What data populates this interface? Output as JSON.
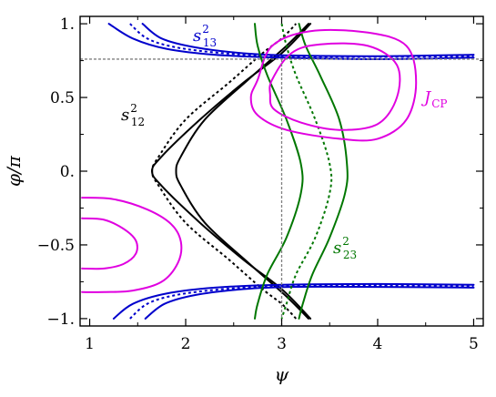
{
  "chart_data": {
    "type": "line",
    "xlabel": "ψ",
    "ylabel": "φ/π",
    "xlim": [
      0.9,
      5.1
    ],
    "ylim": [
      -1.05,
      1.05
    ],
    "x_ticks": [
      "1",
      "2",
      "3",
      "4",
      "5"
    ],
    "y_ticks": [
      "−1.",
      "−0.5",
      "0.",
      "0.5",
      "1."
    ],
    "grid": false,
    "reference_lines": {
      "horizontal_y": 0.76,
      "vertical_x": 3.0,
      "color": "#7f7f7f",
      "style": "dashed"
    },
    "annotations": [
      {
        "id": "s13",
        "base": "s",
        "sup": "2",
        "sub": "13",
        "color": "#0000cc"
      },
      {
        "id": "s12",
        "base": "s",
        "sup": "2",
        "sub": "12",
        "color": "#000000"
      },
      {
        "id": "s23",
        "base": "s",
        "sup": "2",
        "sub": "23",
        "color": "#007700"
      },
      {
        "id": "jcp",
        "base": "J",
        "sub": "CP",
        "color": "#e000e0"
      }
    ],
    "series": [
      {
        "id": "s12-left",
        "color": "#000000",
        "style": "solid",
        "points": [
          [
            3.3,
            -1.0
          ],
          [
            3.0,
            -0.8
          ],
          [
            2.6,
            -0.6
          ],
          [
            2.15,
            -0.35
          ],
          [
            1.75,
            -0.1
          ],
          [
            1.65,
            0.0
          ],
          [
            1.75,
            0.1
          ],
          [
            2.15,
            0.35
          ],
          [
            2.6,
            0.6
          ],
          [
            3.0,
            0.8
          ],
          [
            3.3,
            1.0
          ]
        ]
      },
      {
        "id": "s12-mid",
        "color": "#000000",
        "style": "dotted",
        "points": [
          [
            3.15,
            -1.0
          ],
          [
            3.0,
            -0.9
          ],
          [
            2.8,
            -0.8
          ],
          [
            2.45,
            -0.6
          ],
          [
            2.0,
            -0.35
          ],
          [
            1.72,
            -0.1
          ],
          [
            1.65,
            0.0
          ],
          [
            1.72,
            0.1
          ],
          [
            2.0,
            0.35
          ],
          [
            2.45,
            0.6
          ],
          [
            2.8,
            0.8
          ],
          [
            3.0,
            0.9
          ],
          [
            3.15,
            1.0
          ]
        ]
      },
      {
        "id": "s12-right",
        "color": "#000000",
        "style": "solid",
        "points": [
          [
            3.28,
            -1.0
          ],
          [
            3.05,
            -0.85
          ],
          [
            2.65,
            -0.62
          ],
          [
            2.2,
            -0.35
          ],
          [
            1.95,
            -0.1
          ],
          [
            1.9,
            0.0
          ],
          [
            1.95,
            0.1
          ],
          [
            2.2,
            0.35
          ],
          [
            2.65,
            0.62
          ],
          [
            3.05,
            0.85
          ],
          [
            3.28,
            1.0
          ]
        ]
      },
      {
        "id": "s13-top-left",
        "color": "#0000cc",
        "style": "solid",
        "points": [
          [
            1.2,
            1.0
          ],
          [
            1.45,
            0.9
          ],
          [
            1.8,
            0.83
          ],
          [
            2.3,
            0.79
          ],
          [
            3.0,
            0.77
          ],
          [
            4.0,
            0.76
          ],
          [
            5.0,
            0.77
          ]
        ]
      },
      {
        "id": "s13-top-mid",
        "color": "#0000cc",
        "style": "dotted",
        "points": [
          [
            1.42,
            1.0
          ],
          [
            1.6,
            0.9
          ],
          [
            1.9,
            0.84
          ],
          [
            2.4,
            0.8
          ],
          [
            3.0,
            0.78
          ],
          [
            4.0,
            0.775
          ],
          [
            5.0,
            0.78
          ]
        ]
      },
      {
        "id": "s13-top-right",
        "color": "#0000cc",
        "style": "solid",
        "points": [
          [
            1.55,
            1.0
          ],
          [
            1.75,
            0.9
          ],
          [
            2.1,
            0.84
          ],
          [
            2.6,
            0.8
          ],
          [
            3.1,
            0.785
          ],
          [
            4.0,
            0.78
          ],
          [
            5.0,
            0.79
          ]
        ]
      },
      {
        "id": "s13-bot-left",
        "color": "#0000cc",
        "style": "solid",
        "points": [
          [
            1.25,
            -1.0
          ],
          [
            1.45,
            -0.9
          ],
          [
            1.8,
            -0.83
          ],
          [
            2.3,
            -0.79
          ],
          [
            3.0,
            -0.77
          ],
          [
            4.0,
            -0.765
          ],
          [
            5.0,
            -0.77
          ]
        ]
      },
      {
        "id": "s13-bot-mid",
        "color": "#0000cc",
        "style": "dotted",
        "points": [
          [
            1.42,
            -1.0
          ],
          [
            1.6,
            -0.9
          ],
          [
            1.9,
            -0.84
          ],
          [
            2.4,
            -0.8
          ],
          [
            3.0,
            -0.78
          ],
          [
            4.0,
            -0.775
          ],
          [
            5.0,
            -0.78
          ]
        ]
      },
      {
        "id": "s13-bot-right",
        "color": "#0000cc",
        "style": "solid",
        "points": [
          [
            1.58,
            -1.0
          ],
          [
            1.78,
            -0.9
          ],
          [
            2.1,
            -0.84
          ],
          [
            2.6,
            -0.8
          ],
          [
            3.1,
            -0.785
          ],
          [
            4.0,
            -0.785
          ],
          [
            5.0,
            -0.79
          ]
        ]
      },
      {
        "id": "s23-left",
        "color": "#007700",
        "style": "solid",
        "points": [
          [
            2.72,
            1.0
          ],
          [
            2.75,
            0.85
          ],
          [
            2.85,
            0.65
          ],
          [
            3.05,
            0.35
          ],
          [
            3.2,
            0.05
          ],
          [
            3.2,
            -0.15
          ],
          [
            3.05,
            -0.45
          ],
          [
            2.85,
            -0.7
          ],
          [
            2.75,
            -0.9
          ],
          [
            2.72,
            -1.0
          ]
        ]
      },
      {
        "id": "s23-mid",
        "color": "#007700",
        "style": "dotted",
        "points": [
          [
            3.0,
            1.0
          ],
          [
            3.05,
            0.85
          ],
          [
            3.15,
            0.65
          ],
          [
            3.35,
            0.35
          ],
          [
            3.5,
            0.05
          ],
          [
            3.5,
            -0.15
          ],
          [
            3.35,
            -0.45
          ],
          [
            3.15,
            -0.7
          ],
          [
            3.05,
            -0.9
          ],
          [
            3.0,
            -1.0
          ]
        ]
      },
      {
        "id": "s23-right",
        "color": "#007700",
        "style": "solid",
        "points": [
          [
            3.18,
            1.0
          ],
          [
            3.25,
            0.85
          ],
          [
            3.4,
            0.65
          ],
          [
            3.6,
            0.35
          ],
          [
            3.68,
            0.05
          ],
          [
            3.66,
            -0.15
          ],
          [
            3.5,
            -0.45
          ],
          [
            3.32,
            -0.7
          ],
          [
            3.22,
            -0.9
          ],
          [
            3.18,
            -1.0
          ]
        ]
      },
      {
        "id": "jcp-outer-right",
        "color": "#e000e0",
        "style": "solid",
        "closed": true,
        "points": [
          [
            2.75,
            0.62
          ],
          [
            2.9,
            0.85
          ],
          [
            3.3,
            0.95
          ],
          [
            3.9,
            0.94
          ],
          [
            4.3,
            0.85
          ],
          [
            4.4,
            0.6
          ],
          [
            4.3,
            0.35
          ],
          [
            4.0,
            0.22
          ],
          [
            3.6,
            0.22
          ],
          [
            3.05,
            0.28
          ],
          [
            2.75,
            0.38
          ],
          [
            2.68,
            0.5
          ]
        ]
      },
      {
        "id": "jcp-inner-right",
        "color": "#e000e0",
        "style": "solid",
        "closed": true,
        "points": [
          [
            2.9,
            0.62
          ],
          [
            3.1,
            0.8
          ],
          [
            3.4,
            0.86
          ],
          [
            3.9,
            0.85
          ],
          [
            4.2,
            0.72
          ],
          [
            4.2,
            0.5
          ],
          [
            4.0,
            0.32
          ],
          [
            3.6,
            0.28
          ],
          [
            3.2,
            0.33
          ],
          [
            2.92,
            0.42
          ],
          [
            2.88,
            0.52
          ]
        ]
      },
      {
        "id": "jcp-outer-left",
        "color": "#e000e0",
        "style": "solid",
        "points": [
          [
            0.92,
            -0.18
          ],
          [
            1.25,
            -0.19
          ],
          [
            1.6,
            -0.26
          ],
          [
            1.85,
            -0.36
          ],
          [
            1.95,
            -0.48
          ],
          [
            1.92,
            -0.62
          ],
          [
            1.75,
            -0.75
          ],
          [
            1.45,
            -0.81
          ],
          [
            1.15,
            -0.82
          ],
          [
            0.92,
            -0.82
          ]
        ]
      },
      {
        "id": "jcp-inner-left",
        "color": "#e000e0",
        "style": "solid",
        "points": [
          [
            0.92,
            -0.32
          ],
          [
            1.15,
            -0.33
          ],
          [
            1.35,
            -0.39
          ],
          [
            1.48,
            -0.47
          ],
          [
            1.48,
            -0.56
          ],
          [
            1.35,
            -0.63
          ],
          [
            1.15,
            -0.66
          ],
          [
            0.92,
            -0.66
          ]
        ]
      }
    ]
  }
}
